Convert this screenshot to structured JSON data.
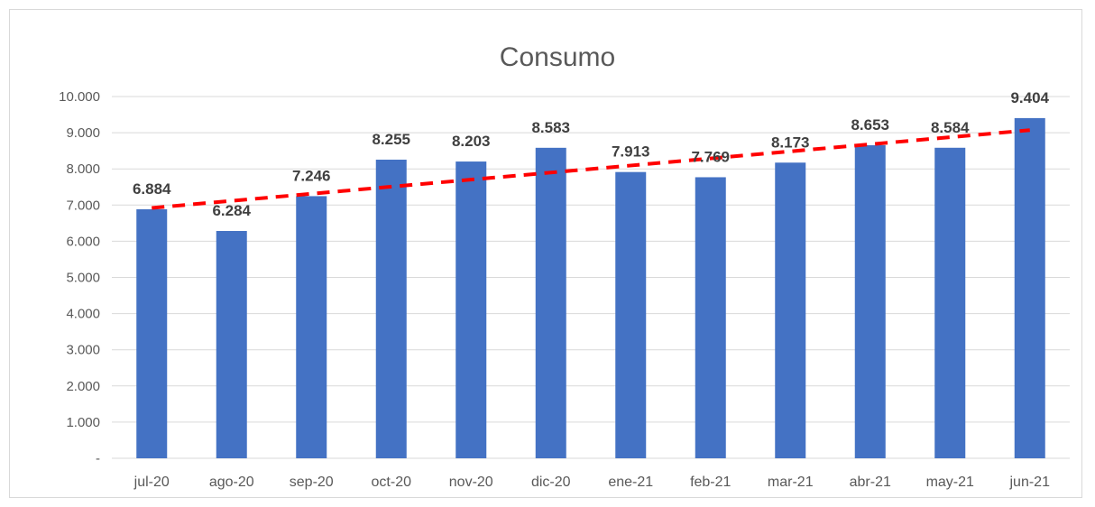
{
  "chart_data": {
    "type": "bar",
    "title": "Consumo",
    "categories": [
      "jul-20",
      "ago-20",
      "sep-20",
      "oct-20",
      "nov-20",
      "dic-20",
      "ene-21",
      "feb-21",
      "mar-21",
      "abr-21",
      "may-21",
      "jun-21"
    ],
    "series": [
      {
        "values": [
          6884,
          6284,
          7246,
          8255,
          8203,
          8583,
          7913,
          7769,
          8173,
          8653,
          8584,
          9404
        ],
        "labels": [
          "6.884",
          "6.284",
          "7.246",
          "8.255",
          "8.203",
          "8.583",
          "7.913",
          "7.769",
          "8.173",
          "8.653",
          "8.584",
          "9.404"
        ],
        "color": "#4472C4"
      }
    ],
    "trendline": {
      "type": "linear",
      "color": "#FF0000",
      "style": "dashed"
    },
    "ylim": [
      0,
      10000
    ],
    "yticks": [
      0,
      1000,
      2000,
      3000,
      4000,
      5000,
      6000,
      7000,
      8000,
      9000,
      10000
    ],
    "ytick_labels": [
      "-",
      "1.000",
      "2.000",
      "3.000",
      "4.000",
      "5.000",
      "6.000",
      "7.000",
      "8.000",
      "9.000",
      "10.000"
    ],
    "grid": true,
    "legend": "none"
  }
}
